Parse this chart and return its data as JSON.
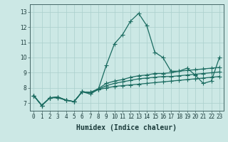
{
  "xlabel": "Humidex (Indice chaleur)",
  "bg_color": "#cce8e5",
  "grid_color": "#aacfcc",
  "line_color": "#1a6b60",
  "xlim": [
    -0.5,
    23.5
  ],
  "ylim": [
    6.5,
    13.5
  ],
  "xticks": [
    0,
    1,
    2,
    3,
    4,
    5,
    6,
    7,
    8,
    9,
    10,
    11,
    12,
    13,
    14,
    15,
    16,
    17,
    18,
    19,
    20,
    21,
    22,
    23
  ],
  "yticks": [
    7,
    8,
    9,
    10,
    11,
    12,
    13
  ],
  "curves": [
    [
      7.5,
      6.85,
      7.35,
      7.35,
      7.2,
      7.1,
      7.75,
      7.6,
      7.9,
      9.5,
      10.9,
      11.5,
      12.4,
      12.9,
      12.1,
      10.35,
      10.0,
      9.1,
      9.1,
      9.3,
      8.85,
      8.3,
      8.45,
      10.0
    ],
    [
      7.5,
      6.85,
      7.35,
      7.4,
      7.2,
      7.1,
      7.75,
      7.7,
      7.95,
      8.3,
      8.45,
      8.55,
      8.7,
      8.8,
      8.85,
      8.95,
      8.95,
      9.0,
      9.1,
      9.15,
      9.2,
      9.25,
      9.3,
      9.35
    ],
    [
      7.5,
      6.85,
      7.35,
      7.4,
      7.2,
      7.1,
      7.75,
      7.7,
      7.9,
      8.15,
      8.3,
      8.4,
      8.5,
      8.6,
      8.65,
      8.7,
      8.75,
      8.75,
      8.8,
      8.85,
      8.9,
      8.95,
      9.0,
      9.05
    ],
    [
      7.5,
      6.85,
      7.35,
      7.4,
      7.2,
      7.1,
      7.75,
      7.7,
      7.9,
      8.0,
      8.1,
      8.15,
      8.2,
      8.25,
      8.3,
      8.35,
      8.4,
      8.45,
      8.5,
      8.55,
      8.6,
      8.65,
      8.7,
      8.75
    ]
  ],
  "tick_fontsize": 5.5,
  "xlabel_fontsize": 7,
  "marker": "+",
  "markersize": 4,
  "linewidth": 0.9
}
